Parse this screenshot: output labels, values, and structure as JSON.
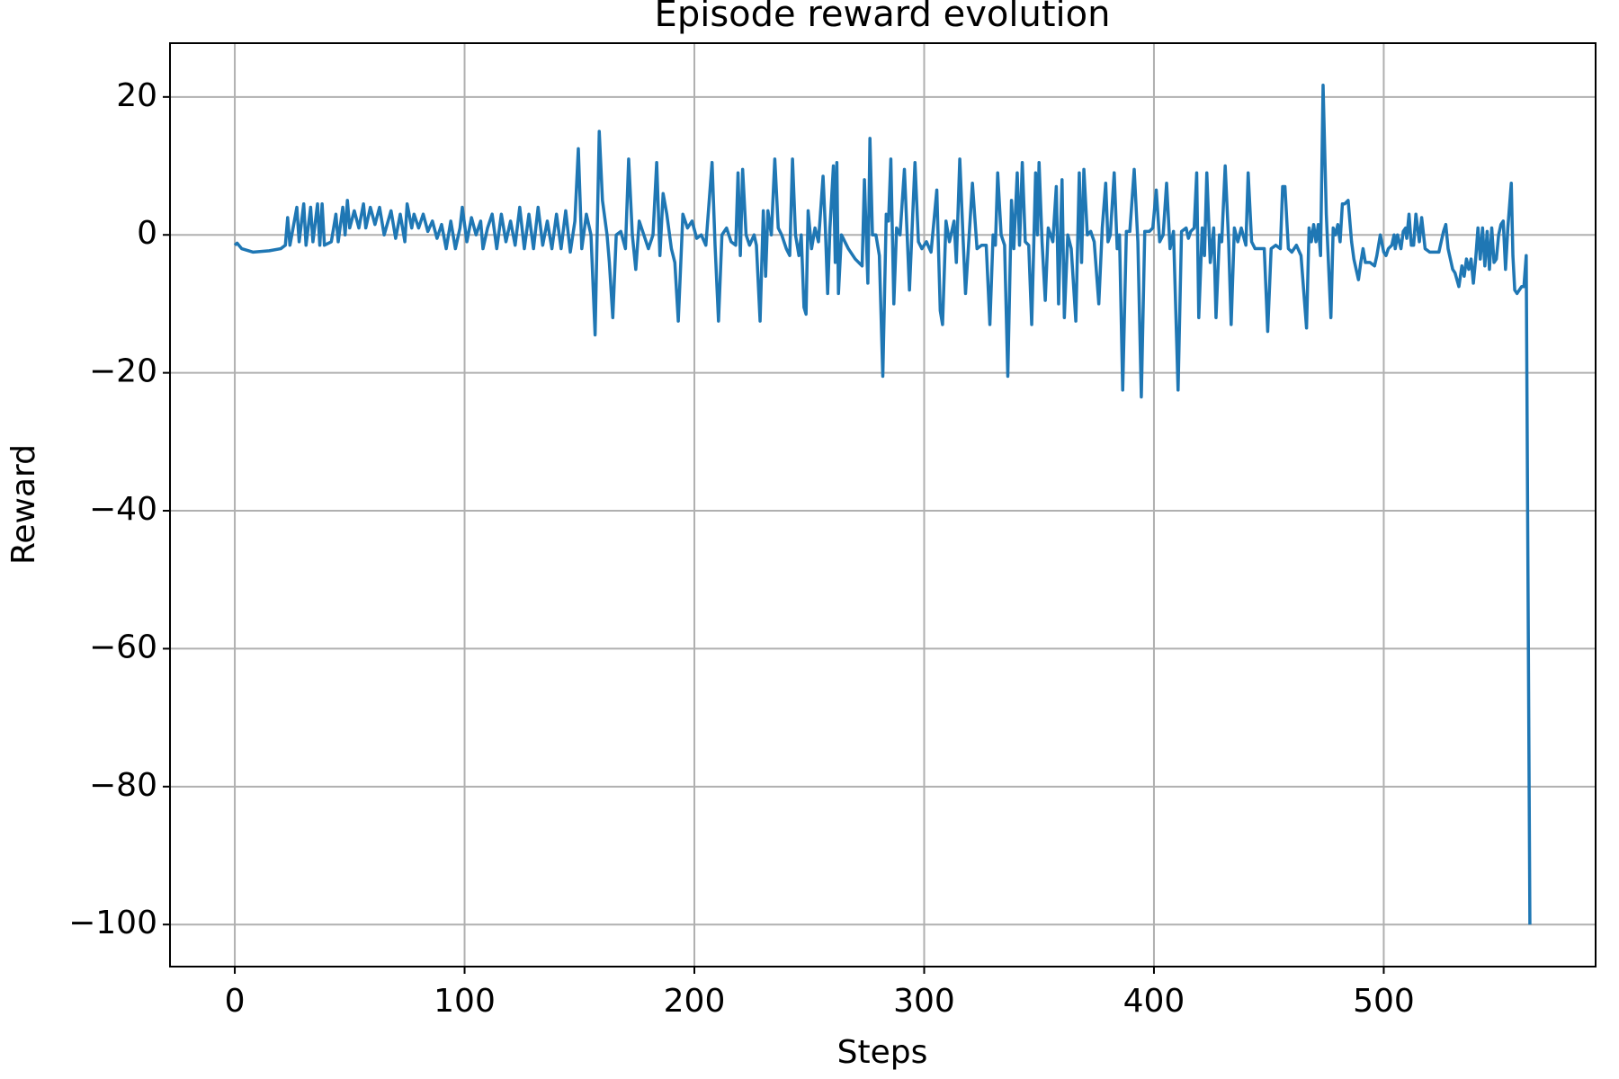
{
  "chart_data": {
    "type": "line",
    "title": "Episode reward evolution",
    "x_label": "Steps",
    "y_label": "Reward",
    "color": "#1f77b4",
    "grid": true,
    "xlim": [
      -28.2,
      592.2
    ],
    "ylim": [
      -106.1,
      27.8
    ],
    "xticks": [
      0,
      100,
      200,
      300,
      400,
      500
    ],
    "yticks": [
      {
        "value": -100,
        "label": "−100"
      },
      {
        "value": -80,
        "label": "−80"
      },
      {
        "value": -60,
        "label": "−60"
      },
      {
        "value": -40,
        "label": "−40"
      },
      {
        "value": -20,
        "label": "−20"
      },
      0,
      20
    ],
    "x": [
      0,
      1,
      3,
      8,
      15,
      20,
      22,
      23,
      24,
      27,
      28,
      30,
      31,
      33,
      34,
      36,
      37,
      38,
      39,
      42,
      44,
      45,
      47,
      48,
      49,
      50,
      52,
      54,
      56,
      57,
      59,
      61,
      63,
      65,
      68,
      70,
      72,
      74,
      75,
      77,
      78,
      80,
      82,
      84,
      86,
      88,
      90,
      92,
      94,
      96,
      98,
      99,
      101,
      103,
      105,
      107,
      108,
      110,
      112,
      114,
      116,
      118,
      120,
      122,
      124,
      126,
      128,
      130,
      132,
      134,
      136,
      138,
      140,
      142,
      144,
      146,
      148,
      149.5,
      151,
      153,
      155,
      156.8,
      158.6,
      160,
      162,
      163,
      164.5,
      166,
      168,
      170,
      171.4,
      173,
      174.5,
      176,
      178,
      180,
      182,
      183.6,
      185,
      186.4,
      188,
      190,
      191.5,
      193,
      195,
      197,
      199,
      201,
      203,
      205,
      207.7,
      209,
      210.5,
      212,
      214,
      216,
      218,
      219,
      220,
      221,
      222.5,
      224,
      226,
      227,
      228.6,
      230,
      231,
      232,
      233.5,
      235,
      236.5,
      238,
      240,
      241.5,
      242.7,
      244,
      245.5,
      246.5,
      247.7,
      248.6,
      249.5,
      251,
      252.5,
      254,
      256,
      257,
      258,
      259,
      260.5,
      261.3,
      262,
      262.7,
      264,
      267,
      270,
      273,
      274,
      275.5,
      276.4,
      277.5,
      279,
      280.5,
      282,
      283.5,
      284.5,
      285.5,
      286.8,
      288,
      289.5,
      291.4,
      293.6,
      296,
      297.5,
      299,
      301,
      303,
      305.5,
      307,
      308,
      309.5,
      311,
      313,
      314,
      315.5,
      317,
      318,
      321,
      323,
      325,
      327,
      328.6,
      330,
      331,
      332,
      333.5,
      335,
      336.4,
      338,
      339,
      340.5,
      341.5,
      342.7,
      344,
      345.5,
      346.8,
      348.5,
      349.3,
      350,
      351.3,
      352.7,
      354,
      356,
      357.5,
      358.5,
      360,
      361,
      362.5,
      364,
      366,
      367.5,
      368.5,
      369.5,
      371,
      372.5,
      374,
      376,
      377.5,
      379,
      380,
      381,
      382.7,
      384,
      385,
      386.4,
      388,
      389.5,
      391.4,
      393,
      394.5,
      396,
      398,
      399.5,
      401,
      402.5,
      404,
      405.5,
      407,
      408.5,
      410.5,
      412,
      414,
      415,
      416,
      417.5,
      418.6,
      419.5,
      421,
      422,
      423,
      424.5,
      426,
      427,
      428.5,
      429.5,
      431,
      432.5,
      433.6,
      435,
      436.5,
      438,
      440,
      441,
      442.5,
      444,
      446,
      448,
      449.5,
      451,
      453,
      455,
      456,
      457,
      458.5,
      460,
      462,
      464,
      466.4,
      467.5,
      468.5,
      469.5,
      470.5,
      471.5,
      472.5,
      473.6,
      475,
      477,
      478,
      479,
      480,
      481,
      482,
      483,
      484.5,
      486,
      487,
      489,
      490,
      491,
      492,
      494,
      496,
      497,
      498.5,
      500,
      501,
      502,
      503.5,
      504.5,
      505,
      506,
      507.5,
      508.5,
      509.5,
      510,
      511,
      512,
      513,
      514,
      515.5,
      516.5,
      518,
      520,
      522,
      524,
      526,
      527,
      528,
      530,
      531,
      532.7,
      534,
      535,
      536,
      537,
      538,
      539,
      540,
      541,
      542,
      543,
      544,
      545,
      546,
      547,
      548,
      549,
      550,
      551,
      552,
      553,
      554,
      555.5,
      556.2,
      557,
      558,
      559,
      560,
      561,
      562,
      563.6
    ],
    "values": [
      -1.5,
      -1.2,
      -2,
      -2.5,
      -2.3,
      -2,
      -1.5,
      2.5,
      -1.5,
      4,
      -1,
      4.5,
      -1.5,
      4,
      -1,
      4.5,
      -1.5,
      4.5,
      -1.5,
      -1,
      3,
      -1,
      4,
      0,
      5,
      1,
      3.5,
      1,
      4.5,
      1,
      4,
      1.5,
      4,
      0,
      3.5,
      -0.5,
      3,
      -1,
      4.5,
      1,
      3,
      1,
      3,
      0.5,
      2,
      -0.5,
      1.5,
      -2,
      2,
      -2,
      1,
      4,
      -1,
      2.5,
      0,
      2,
      -2,
      1,
      3,
      -2,
      3,
      -1,
      2,
      -1.5,
      4,
      -2,
      3,
      -2,
      4,
      -1.5,
      2,
      -2,
      3,
      -2,
      3.5,
      -2.5,
      2,
      12.5,
      -2,
      3,
      0,
      -14.5,
      15,
      5,
      0,
      -4,
      -12,
      0,
      0.5,
      -2,
      11,
      0,
      -5,
      2,
      0,
      -2,
      0,
      10.5,
      -3,
      6,
      3,
      -2,
      -4,
      -12.5,
      3,
      1,
      2,
      -0.5,
      0,
      -1.5,
      10.5,
      -1.5,
      -12.5,
      0,
      1,
      -1,
      -1.5,
      9,
      -3,
      9.5,
      0,
      -1.5,
      0,
      -1.5,
      -12.5,
      3.5,
      -6,
      3.5,
      0,
      11,
      1,
      0,
      -2,
      -3,
      11,
      0,
      -3,
      0,
      -10.5,
      -11.5,
      3.5,
      -2,
      1,
      -1,
      8.5,
      1,
      -8.5,
      1,
      10,
      -4,
      10.5,
      -8.5,
      0,
      -2,
      -3.5,
      -4.5,
      8,
      -7,
      14,
      0,
      0,
      -3,
      -20.5,
      3,
      2,
      11,
      -10,
      1,
      0,
      9.5,
      -8,
      10.5,
      -1,
      -2,
      -1,
      -2.5,
      6.5,
      -11,
      -13,
      2,
      -1,
      2,
      -4,
      11,
      -1,
      -8.5,
      7.5,
      -2,
      -1.5,
      -1.5,
      -13,
      0,
      -1.5,
      9,
      0,
      -1.5,
      -20.5,
      5,
      -2,
      9,
      -1.5,
      10.5,
      -1,
      -1.5,
      -13,
      9,
      0,
      10.5,
      -1,
      -9.5,
      1,
      -1,
      7,
      -10,
      8,
      -12,
      0,
      -2,
      -12.5,
      9,
      -4,
      9.5,
      0,
      0.5,
      -1,
      -10,
      1,
      7.5,
      -1,
      0,
      9,
      -2,
      0,
      -22.5,
      0.5,
      0.5,
      9.5,
      -1,
      -23.5,
      0.5,
      0.5,
      1,
      6.5,
      -1,
      0,
      7.5,
      -2,
      0.5,
      -22.5,
      0.5,
      1,
      -0.5,
      0.5,
      1,
      9,
      -12,
      1,
      -3,
      9,
      -4,
      1,
      -12,
      0,
      -1,
      10,
      -1,
      -13,
      1,
      -1,
      1,
      -1.5,
      9,
      -1,
      -2,
      -2,
      -2,
      -14,
      -2,
      -1.5,
      -2,
      7,
      7,
      -2,
      -2.5,
      -1.5,
      -3,
      -13.5,
      1,
      -1,
      1.5,
      -1,
      1.5,
      -3,
      21.7,
      3,
      -12,
      1,
      0,
      1.5,
      -1,
      4.5,
      4.5,
      5,
      -1,
      -3.5,
      -6.5,
      -4,
      -2,
      -4,
      -4,
      -4.5,
      -3,
      0,
      -2.5,
      -3,
      -2,
      -1.5,
      0,
      -2,
      0,
      -2,
      0.5,
      1,
      -0.5,
      3,
      -1.5,
      -1.5,
      3,
      -1,
      2.5,
      -2,
      -2.5,
      -2.5,
      -2.5,
      0.5,
      1.5,
      -2,
      -5,
      -5.5,
      -7.5,
      -4.5,
      -6,
      -3.5,
      -5,
      -3.5,
      -7,
      -3.5,
      1,
      -3.5,
      1,
      -4.5,
      0.5,
      -5,
      1,
      -4,
      -3.5,
      0,
      1.5,
      2,
      -5,
      1,
      7.5,
      -3,
      -8,
      -8.5,
      -8,
      -7.5,
      -7.5,
      -3,
      -100
    ]
  }
}
